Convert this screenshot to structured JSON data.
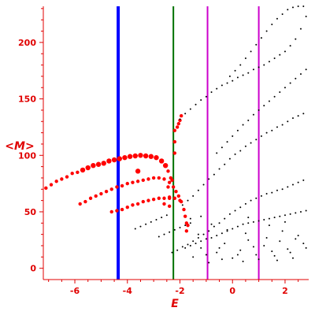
{
  "chart_data": {
    "type": "scatter",
    "title": "",
    "xlabel": "E",
    "ylabel": "<M>",
    "xlim": [
      -7.2,
      2.9
    ],
    "ylim": [
      -10,
      232
    ],
    "x_ticks": [
      -6,
      -4,
      -2,
      0,
      2
    ],
    "y_ticks": [
      0,
      50,
      100,
      150,
      200
    ],
    "grid": false,
    "legend": "none",
    "vertical_lines": [
      {
        "x": -4.35,
        "color": "#0000ff"
      },
      {
        "x": -2.25,
        "color": "#007000"
      },
      {
        "x": -0.95,
        "color": "#cc00cc"
      },
      {
        "x": 1.0,
        "color": "#cc00cc"
      }
    ],
    "series": [
      {
        "color": "#ff0000",
        "values": [
          [
            -7.1,
            71
          ],
          [
            -6.9,
            74
          ],
          [
            -6.7,
            77
          ],
          [
            -6.5,
            79
          ],
          [
            -6.3,
            81
          ],
          [
            -6.1,
            84
          ],
          [
            -5.9,
            85
          ],
          [
            -5.7,
            87
          ],
          [
            -5.5,
            89
          ],
          [
            -5.3,
            91
          ],
          [
            -5.1,
            92
          ],
          [
            -4.9,
            93
          ],
          [
            -4.7,
            95
          ],
          [
            -4.5,
            96
          ],
          [
            -4.3,
            97
          ],
          [
            -4.1,
            98
          ],
          [
            -3.9,
            99
          ],
          [
            -3.7,
            99.5
          ],
          [
            -3.5,
            100
          ],
          [
            -3.3,
            99.5
          ],
          [
            -3.1,
            99
          ],
          [
            -2.9,
            98
          ],
          [
            -2.7,
            95
          ],
          [
            -2.55,
            91
          ],
          [
            -2.45,
            86
          ],
          [
            -2.35,
            80
          ],
          [
            -2.3,
            78
          ],
          [
            -5.8,
            57
          ],
          [
            -5.6,
            59
          ],
          [
            -5.4,
            62
          ],
          [
            -5.2,
            64
          ],
          [
            -5.0,
            66
          ],
          [
            -4.8,
            68
          ],
          [
            -4.6,
            70
          ],
          [
            -4.4,
            72
          ],
          [
            -4.2,
            73
          ],
          [
            -4.0,
            75
          ],
          [
            -3.8,
            76
          ],
          [
            -3.6,
            77
          ],
          [
            -3.4,
            78
          ],
          [
            -3.2,
            79
          ],
          [
            -3.0,
            80
          ],
          [
            -2.8,
            80
          ],
          [
            -2.6,
            79
          ],
          [
            -2.4,
            76
          ],
          [
            -2.25,
            72
          ],
          [
            -2.15,
            68
          ],
          [
            -2.05,
            64
          ],
          [
            -1.95,
            59
          ],
          [
            -1.85,
            52
          ],
          [
            -1.8,
            46
          ],
          [
            -1.75,
            40
          ],
          [
            -1.75,
            33
          ],
          [
            -4.6,
            50
          ],
          [
            -4.4,
            51
          ],
          [
            -4.2,
            52
          ],
          [
            -4.0,
            54
          ],
          [
            -3.8,
            56
          ],
          [
            -3.6,
            57
          ],
          [
            -3.4,
            59
          ],
          [
            -3.2,
            60
          ],
          [
            -3.0,
            61
          ],
          [
            -2.8,
            62
          ],
          [
            -2.6,
            62
          ],
          [
            -2.4,
            62
          ],
          [
            -2.2,
            62
          ],
          [
            -2.0,
            60
          ],
          [
            -2.6,
            57
          ],
          [
            -2.4,
            55
          ],
          [
            -3.6,
            86
          ],
          [
            -2.2,
            102
          ],
          [
            -2.2,
            112
          ],
          [
            -2.2,
            122
          ],
          [
            -2.1,
            125
          ],
          [
            -2.0,
            131
          ],
          [
            -1.95,
            135
          ],
          [
            -2.05,
            128
          ],
          [
            -2.45,
            72
          ],
          [
            -2.4,
            63
          ],
          [
            -1.7,
            38
          ]
        ]
      },
      {
        "color": "#000000",
        "values": [
          [
            -3.7,
            35
          ],
          [
            -3.5,
            37
          ],
          [
            -3.3,
            39
          ],
          [
            -3.1,
            41
          ],
          [
            -2.9,
            43
          ],
          [
            -2.7,
            45
          ],
          [
            -2.5,
            47
          ],
          [
            -2.8,
            28
          ],
          [
            -2.6,
            30
          ],
          [
            -2.4,
            32
          ],
          [
            -2.2,
            34
          ],
          [
            -2.0,
            36
          ],
          [
            -1.8,
            38
          ],
          [
            -1.6,
            40
          ],
          [
            -2.3,
            14
          ],
          [
            -2.1,
            16
          ],
          [
            -1.9,
            19
          ],
          [
            -1.7,
            21
          ],
          [
            -1.5,
            24
          ],
          [
            -1.3,
            27
          ],
          [
            -1.1,
            30
          ],
          [
            -0.9,
            33
          ],
          [
            -0.7,
            37
          ],
          [
            -0.5,
            40
          ],
          [
            -0.3,
            44
          ],
          [
            -0.1,
            48
          ],
          [
            0.1,
            51
          ],
          [
            0.3,
            54
          ],
          [
            0.5,
            57
          ],
          [
            0.7,
            60
          ],
          [
            0.9,
            62
          ],
          [
            1.1,
            64
          ],
          [
            1.3,
            66
          ],
          [
            1.5,
            67
          ],
          [
            1.7,
            69
          ],
          [
            1.9,
            70
          ],
          [
            2.1,
            72
          ],
          [
            2.3,
            74
          ],
          [
            2.5,
            76
          ],
          [
            2.7,
            78
          ],
          [
            -1.8,
            18
          ],
          [
            -1.6,
            20
          ],
          [
            -1.4,
            22
          ],
          [
            -1.2,
            24
          ],
          [
            -1.0,
            26
          ],
          [
            -0.8,
            27
          ],
          [
            -0.6,
            29
          ],
          [
            -0.4,
            31
          ],
          [
            -0.2,
            33
          ],
          [
            0.0,
            35
          ],
          [
            0.2,
            37
          ],
          [
            0.4,
            39
          ],
          [
            0.6,
            40
          ],
          [
            0.8,
            41
          ],
          [
            1.0,
            42
          ],
          [
            1.2,
            43
          ],
          [
            1.4,
            44
          ],
          [
            1.6,
            45
          ],
          [
            1.8,
            46
          ],
          [
            2.0,
            47
          ],
          [
            2.2,
            48
          ],
          [
            2.4,
            49
          ],
          [
            2.6,
            50
          ],
          [
            2.8,
            51
          ],
          [
            -1.9,
            56
          ],
          [
            -1.7,
            60
          ],
          [
            -1.5,
            64
          ],
          [
            -1.3,
            69
          ],
          [
            -1.1,
            74
          ],
          [
            -0.9,
            79
          ],
          [
            -0.7,
            83
          ],
          [
            -0.5,
            88
          ],
          [
            -0.3,
            92
          ],
          [
            -0.1,
            97
          ],
          [
            0.1,
            101
          ],
          [
            0.3,
            104
          ],
          [
            0.5,
            108
          ],
          [
            0.7,
            111
          ],
          [
            0.9,
            114
          ],
          [
            1.1,
            117
          ],
          [
            1.3,
            120
          ],
          [
            1.5,
            122
          ],
          [
            1.7,
            125
          ],
          [
            1.9,
            127
          ],
          [
            2.1,
            130
          ],
          [
            2.3,
            133
          ],
          [
            2.5,
            135
          ],
          [
            2.7,
            137
          ],
          [
            -2.0,
            132
          ],
          [
            -1.8,
            137
          ],
          [
            -1.6,
            141
          ],
          [
            -1.4,
            145
          ],
          [
            -1.2,
            149
          ],
          [
            -1.0,
            152
          ],
          [
            -0.8,
            156
          ],
          [
            -0.6,
            159
          ],
          [
            -0.4,
            162
          ],
          [
            -0.2,
            164
          ],
          [
            0.0,
            166
          ],
          [
            0.2,
            169
          ],
          [
            0.4,
            171
          ],
          [
            0.6,
            173
          ],
          [
            0.8,
            176
          ],
          [
            1.0,
            178
          ],
          [
            1.2,
            180
          ],
          [
            1.4,
            183
          ],
          [
            1.6,
            186
          ],
          [
            1.8,
            189
          ],
          [
            2.0,
            192
          ],
          [
            2.2,
            197
          ],
          [
            2.4,
            203
          ],
          [
            2.6,
            212
          ],
          [
            2.8,
            223
          ],
          [
            -0.6,
            102
          ],
          [
            -0.4,
            107
          ],
          [
            -0.2,
            112
          ],
          [
            0.0,
            117
          ],
          [
            0.2,
            122
          ],
          [
            0.4,
            127
          ],
          [
            0.6,
            131
          ],
          [
            0.8,
            136
          ],
          [
            1.0,
            140
          ],
          [
            1.2,
            144
          ],
          [
            1.4,
            148
          ],
          [
            1.6,
            152
          ],
          [
            1.8,
            156
          ],
          [
            2.0,
            160
          ],
          [
            2.2,
            164
          ],
          [
            2.4,
            168
          ],
          [
            2.6,
            172
          ],
          [
            2.8,
            176
          ],
          [
            -0.1,
            170
          ],
          [
            0.1,
            175
          ],
          [
            0.3,
            180
          ],
          [
            0.5,
            186
          ],
          [
            0.7,
            192
          ],
          [
            0.9,
            198
          ],
          [
            1.1,
            204
          ],
          [
            1.3,
            210
          ],
          [
            1.5,
            216
          ],
          [
            1.7,
            221
          ],
          [
            1.9,
            225
          ],
          [
            2.1,
            229
          ],
          [
            2.3,
            231
          ],
          [
            2.5,
            232
          ],
          [
            2.7,
            232
          ],
          [
            -1.5,
            10
          ],
          [
            -1.2,
            18
          ],
          [
            -0.9,
            5
          ],
          [
            -0.6,
            14
          ],
          [
            -0.3,
            22
          ],
          [
            0.0,
            9
          ],
          [
            0.3,
            16
          ],
          [
            0.6,
            25
          ],
          [
            0.9,
            12
          ],
          [
            1.2,
            20
          ],
          [
            1.5,
            15
          ],
          [
            1.8,
            24
          ],
          [
            2.1,
            17
          ],
          [
            2.4,
            26
          ],
          [
            2.7,
            22
          ],
          [
            -1.3,
            30
          ],
          [
            -0.8,
            39
          ],
          [
            -0.2,
            34
          ],
          [
            0.5,
            31
          ],
          [
            1.3,
            27
          ],
          [
            1.9,
            33
          ],
          [
            2.5,
            29
          ],
          [
            -0.5,
            18
          ],
          [
            0.2,
            12
          ],
          [
            0.8,
            19
          ],
          [
            1.6,
            11
          ],
          [
            2.2,
            14
          ],
          [
            2.8,
            18
          ],
          [
            -1.0,
            12
          ],
          [
            -0.4,
            8
          ],
          [
            0.4,
            6
          ],
          [
            1.0,
            8
          ],
          [
            1.7,
            7
          ],
          [
            2.3,
            9
          ],
          [
            -1.6,
            44
          ],
          [
            -1.2,
            46
          ],
          [
            0.6,
            45
          ],
          [
            1.4,
            38
          ],
          [
            2.0,
            41
          ]
        ]
      }
    ]
  }
}
